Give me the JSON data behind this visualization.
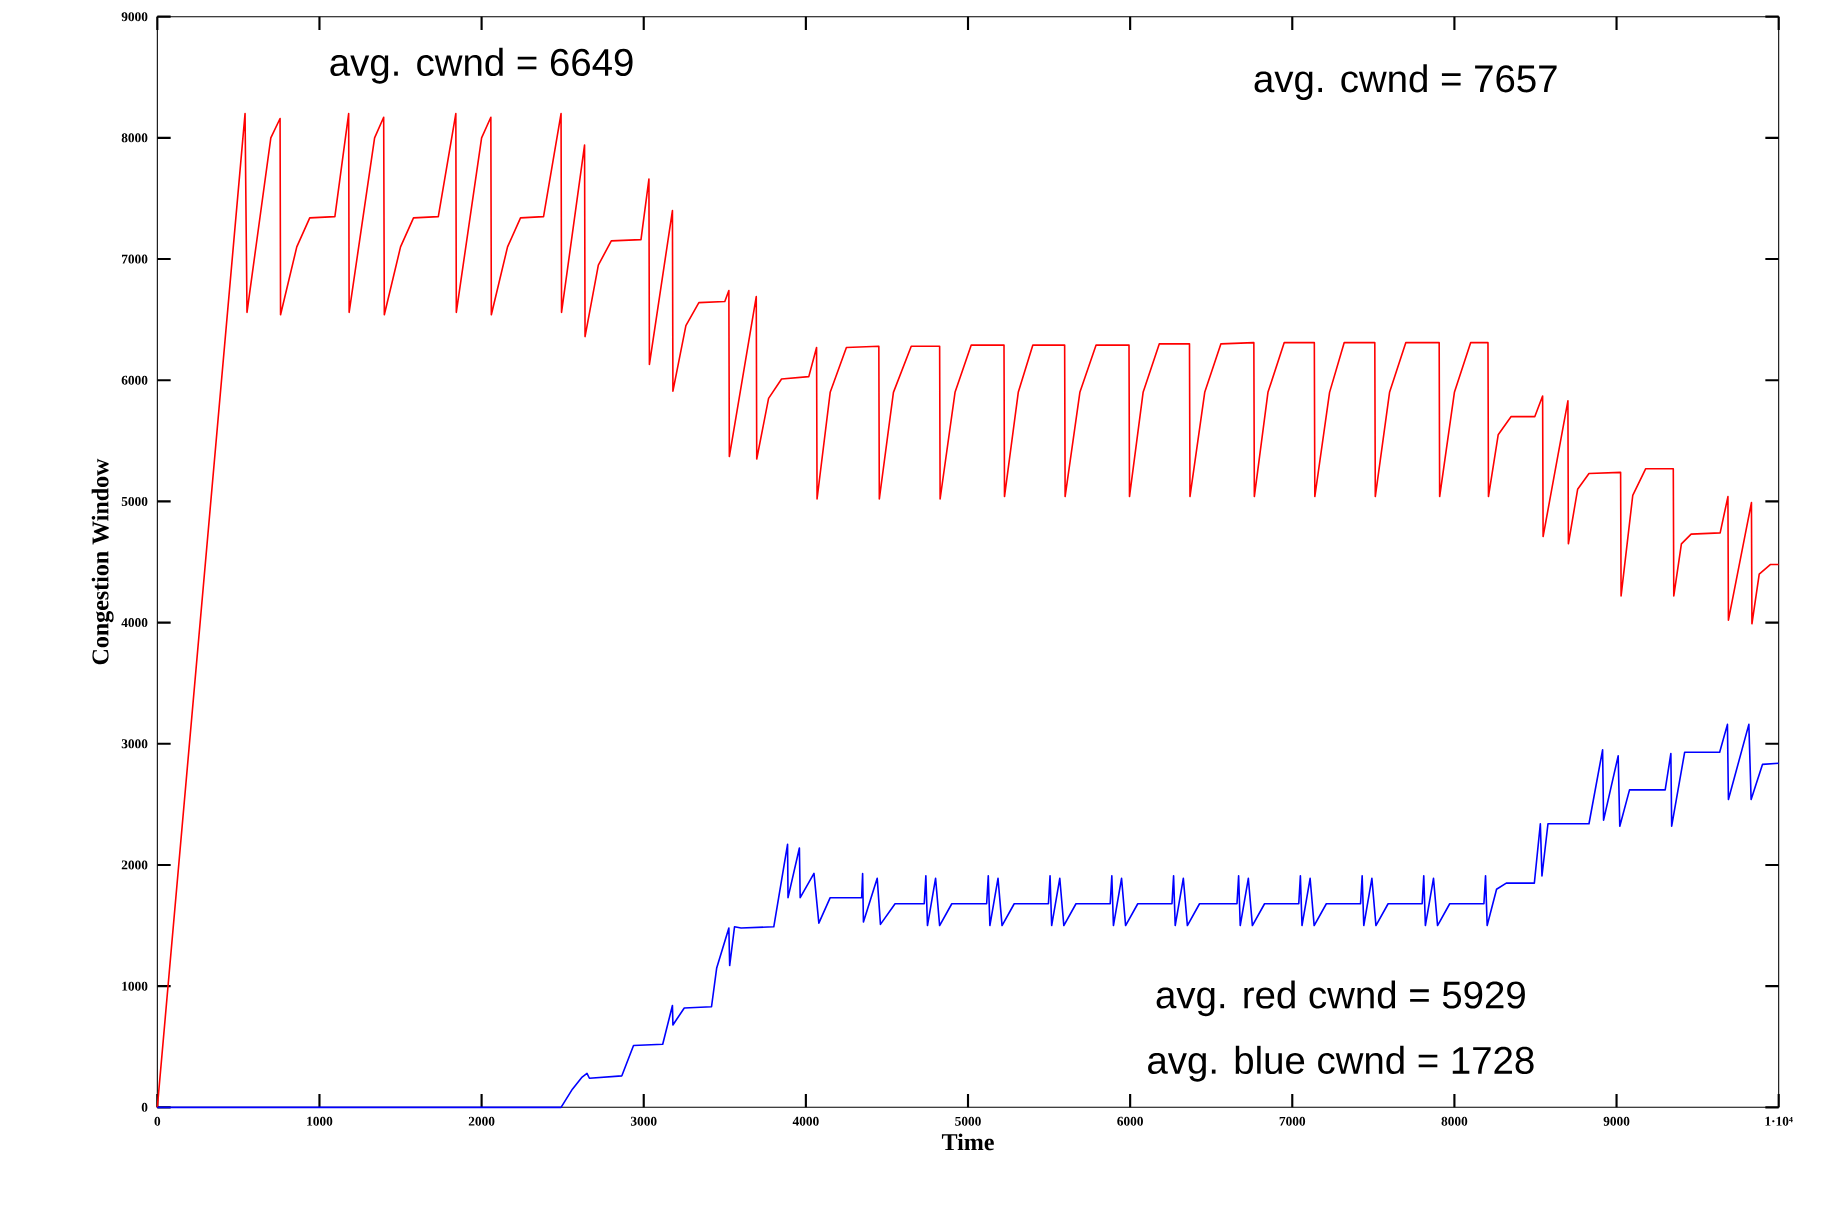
{
  "chart_data": {
    "type": "line",
    "xlabel": "Time",
    "ylabel": "Congestion Window",
    "xlim": [
      0,
      10000
    ],
    "ylim": [
      0,
      9000
    ],
    "xticks": [
      0,
      1000,
      2000,
      3000,
      4000,
      5000,
      6000,
      7000,
      8000,
      9000,
      {
        "value": 10000,
        "label": "1·10⁴"
      }
    ],
    "yticks": [
      0,
      1000,
      2000,
      3000,
      4000,
      5000,
      6000,
      7000,
      8000,
      9000
    ],
    "grid": false,
    "legend": false,
    "marker": "none",
    "line_style": "solid",
    "annotations": [
      "avg. cwnd = 6649",
      "avg. cwnd = 7657",
      "avg. red cwnd = 5929",
      "avg. blue cwnd = 1728"
    ],
    "series": [
      {
        "color": "#ff0000",
        "x": [
          0,
          541,
          553,
          700,
          757,
          760,
          860,
          940,
          1095,
          1180,
          1183,
          1340,
          1396,
          1400,
          1500,
          1580,
          1733,
          1841,
          1844,
          2000,
          2057,
          2060,
          2160,
          2240,
          2382,
          2490,
          2493,
          2635,
          2638,
          2720,
          2800,
          2983,
          3032,
          3035,
          3177,
          3180,
          3260,
          3340,
          3500,
          3525,
          3528,
          3694,
          3697,
          3770,
          3850,
          4018,
          4066,
          4069,
          4150,
          4250,
          4450,
          4453,
          4540,
          4650,
          4825,
          4828,
          4920,
          5020,
          5222,
          5225,
          5310,
          5400,
          5596,
          5599,
          5690,
          5790,
          5993,
          5996,
          6080,
          6180,
          6366,
          6369,
          6460,
          6560,
          6763,
          6766,
          6850,
          6950,
          7136,
          7139,
          7230,
          7320,
          7509,
          7512,
          7600,
          7700,
          7906,
          7909,
          8000,
          8100,
          8207,
          8210,
          8270,
          8350,
          8496,
          8544,
          8547,
          8700,
          8703,
          8760,
          8830,
          9025,
          9028,
          9100,
          9180,
          9350,
          9353,
          9400,
          9460,
          9639,
          9687,
          9690,
          9832,
          9835,
          9880,
          9950,
          10000
        ],
        "values": [
          0,
          8200,
          6560,
          8000,
          8160,
          6540,
          7100,
          7340,
          7350,
          8200,
          6560,
          8000,
          8170,
          6540,
          7100,
          7340,
          7350,
          8200,
          6560,
          8000,
          8170,
          6540,
          7100,
          7340,
          7350,
          8200,
          6560,
          7940,
          6360,
          6950,
          7150,
          7160,
          7660,
          6130,
          7400,
          5910,
          6450,
          6640,
          6650,
          6740,
          5370,
          6690,
          5350,
          5850,
          6010,
          6030,
          6270,
          5020,
          5900,
          6270,
          6280,
          5020,
          5900,
          6280,
          6280,
          5020,
          5900,
          6290,
          6290,
          5040,
          5900,
          6290,
          6290,
          5040,
          5900,
          6290,
          6290,
          5040,
          5900,
          6300,
          6300,
          5040,
          5900,
          6300,
          6310,
          5040,
          5900,
          6310,
          6310,
          5040,
          5900,
          6310,
          6310,
          5040,
          5900,
          6310,
          6310,
          5040,
          5900,
          6310,
          6310,
          5040,
          5550,
          5700,
          5700,
          5870,
          4710,
          5830,
          4650,
          5100,
          5230,
          5240,
          4220,
          5050,
          5270,
          5270,
          4220,
          4650,
          4730,
          4740,
          5040,
          4020,
          4990,
          3990,
          4400,
          4480,
          4480
        ]
      },
      {
        "color": "#0000ff",
        "x": [
          0,
          2490,
          2560,
          2620,
          2650,
          2665,
          2865,
          2937,
          3117,
          3177,
          3180,
          3250,
          3418,
          3450,
          3525,
          3530,
          3560,
          3600,
          3802,
          3887,
          3890,
          3960,
          3965,
          4050,
          4080,
          4150,
          4344,
          4350,
          4355,
          4440,
          4460,
          4550,
          4730,
          4740,
          4750,
          4800,
          4825,
          4900,
          5115,
          5125,
          5135,
          5185,
          5210,
          5285,
          5496,
          5506,
          5516,
          5566,
          5591,
          5666,
          5877,
          5887,
          5897,
          5947,
          5972,
          6047,
          6258,
          6268,
          6278,
          6328,
          6353,
          6428,
          6659,
          6669,
          6679,
          6729,
          6754,
          6829,
          7040,
          7050,
          7060,
          7110,
          7135,
          7210,
          7421,
          7431,
          7441,
          7491,
          7516,
          7591,
          7801,
          7811,
          7821,
          7871,
          7896,
          7971,
          8182,
          8192,
          8202,
          8260,
          8320,
          8493,
          8530,
          8540,
          8577,
          8600,
          8830,
          8914,
          8920,
          9010,
          9020,
          9080,
          9300,
          9335,
          9340,
          9420,
          9636,
          9684,
          9690,
          9816,
          9830,
          9900,
          10000
        ],
        "values": [
          0,
          0,
          150,
          250,
          280,
          240,
          260,
          510,
          520,
          840,
          680,
          820,
          830,
          1150,
          1480,
          1170,
          1490,
          1480,
          1490,
          2170,
          1730,
          2140,
          1730,
          1930,
          1520,
          1730,
          1730,
          1930,
          1530,
          1890,
          1510,
          1680,
          1680,
          1910,
          1500,
          1890,
          1500,
          1680,
          1680,
          1910,
          1500,
          1890,
          1500,
          1680,
          1680,
          1910,
          1500,
          1890,
          1500,
          1680,
          1680,
          1910,
          1500,
          1890,
          1500,
          1680,
          1680,
          1910,
          1500,
          1890,
          1500,
          1680,
          1680,
          1910,
          1500,
          1890,
          1500,
          1680,
          1680,
          1910,
          1500,
          1890,
          1500,
          1680,
          1680,
          1910,
          1500,
          1890,
          1500,
          1680,
          1680,
          1910,
          1500,
          1890,
          1500,
          1680,
          1680,
          1910,
          1500,
          1800,
          1850,
          1850,
          2340,
          1910,
          2340,
          2340,
          2340,
          2950,
          2370,
          2900,
          2320,
          2620,
          2620,
          2920,
          2320,
          2930,
          2930,
          3160,
          2540,
          3160,
          2540,
          2830,
          2840
        ]
      }
    ]
  }
}
